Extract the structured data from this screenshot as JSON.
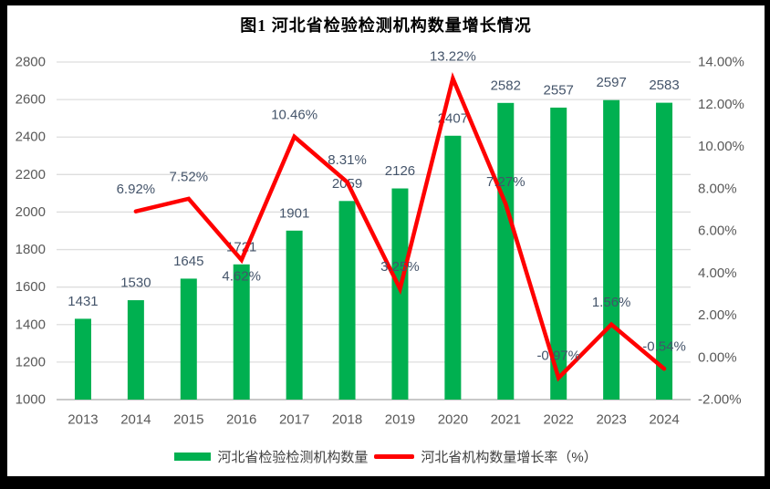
{
  "window": {
    "background": "#ffffff",
    "frame_border_color": "#000000"
  },
  "chart_data": {
    "type": "combo",
    "title": "图1 河北省检验检测机构数量增长情况",
    "categories": [
      "2013",
      "2014",
      "2015",
      "2016",
      "2017",
      "2018",
      "2019",
      "2020",
      "2021",
      "2022",
      "2023",
      "2024"
    ],
    "series": [
      {
        "name": "河北省检验检测机构数量",
        "type": "bar",
        "axis": "left",
        "color": "#00B050",
        "values": [
          1431,
          1530,
          1645,
          1721,
          1901,
          2059,
          2126,
          2407,
          2582,
          2557,
          2597,
          2583
        ],
        "labels": [
          "1431",
          "1530",
          "1645",
          "1721",
          "1901",
          "2059",
          "2126",
          "2407",
          "2582",
          "2557",
          "2597",
          "2583"
        ]
      },
      {
        "name": "河北省机构数量增长率（%）",
        "type": "line",
        "axis": "right",
        "color": "#FF0000",
        "values": [
          null,
          6.92,
          7.52,
          4.62,
          10.46,
          8.31,
          3.25,
          13.22,
          7.27,
          -0.97,
          1.56,
          -0.54
        ],
        "labels": [
          null,
          "6.92%",
          "7.52%",
          "4.62%",
          "10.46%",
          "8.31%",
          "3.25%",
          "13.22%",
          "7.27%",
          "-0.97%",
          "1.56%",
          "-0.54%"
        ],
        "label_positions": [
          null,
          "above",
          "above",
          "below",
          "above",
          "above",
          "above",
          "above",
          "above",
          "above",
          "above",
          "above"
        ]
      }
    ],
    "left_axis": {
      "min": 1000,
      "max": 2800,
      "step": 200,
      "tick_labels": [
        "1000",
        "1200",
        "1400",
        "1600",
        "1800",
        "2000",
        "2200",
        "2400",
        "2600",
        "2800"
      ]
    },
    "right_axis": {
      "min": -2,
      "max": 14,
      "step": 2,
      "tick_labels": [
        "-2.00%",
        "0.00%",
        "2.00%",
        "4.00%",
        "6.00%",
        "8.00%",
        "10.00%",
        "12.00%",
        "14.00%"
      ]
    },
    "grid": true,
    "legend_position": "bottom",
    "styles": {
      "gridline_color": "#dedede",
      "axis_line_color": "#c9c9c9",
      "axis_text_color": "#595959",
      "data_label_color": "#44546a"
    }
  },
  "legend": {
    "items": [
      {
        "label": "河北省检验检测机构数量",
        "swatch": "bar",
        "color": "#00B050"
      },
      {
        "label": "河北省机构数量增长率（%）",
        "swatch": "line",
        "color": "#FF0000"
      }
    ]
  }
}
